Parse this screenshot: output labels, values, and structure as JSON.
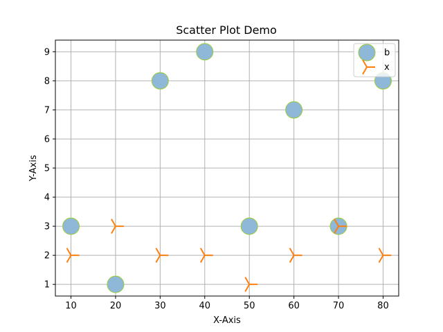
{
  "chart_data": {
    "type": "scatter",
    "title": "Scatter Plot Demo",
    "xlabel": "X-Axis",
    "ylabel": "Y-Axis",
    "xlim": [
      6.5,
      83.5
    ],
    "ylim": [
      0.6,
      9.4
    ],
    "xticks": [
      10,
      20,
      30,
      40,
      50,
      60,
      70,
      80
    ],
    "yticks": [
      1,
      2,
      3,
      4,
      5,
      6,
      7,
      8,
      9
    ],
    "grid": true,
    "legend_position": "top-right",
    "series": [
      {
        "name": "b",
        "marker": "circle",
        "color": "#8fb8d8",
        "edge_color": "#9acd32",
        "x": [
          10,
          20,
          30,
          40,
          50,
          60,
          70,
          80
        ],
        "y": [
          3,
          1,
          8,
          9,
          3,
          7,
          3,
          8
        ]
      },
      {
        "name": "x",
        "marker": "tri-right",
        "color": "#ff7f0e",
        "x": [
          10,
          20,
          30,
          40,
          50,
          60,
          70,
          80
        ],
        "y": [
          2,
          3,
          2,
          2,
          1,
          2,
          3,
          2
        ]
      }
    ]
  }
}
